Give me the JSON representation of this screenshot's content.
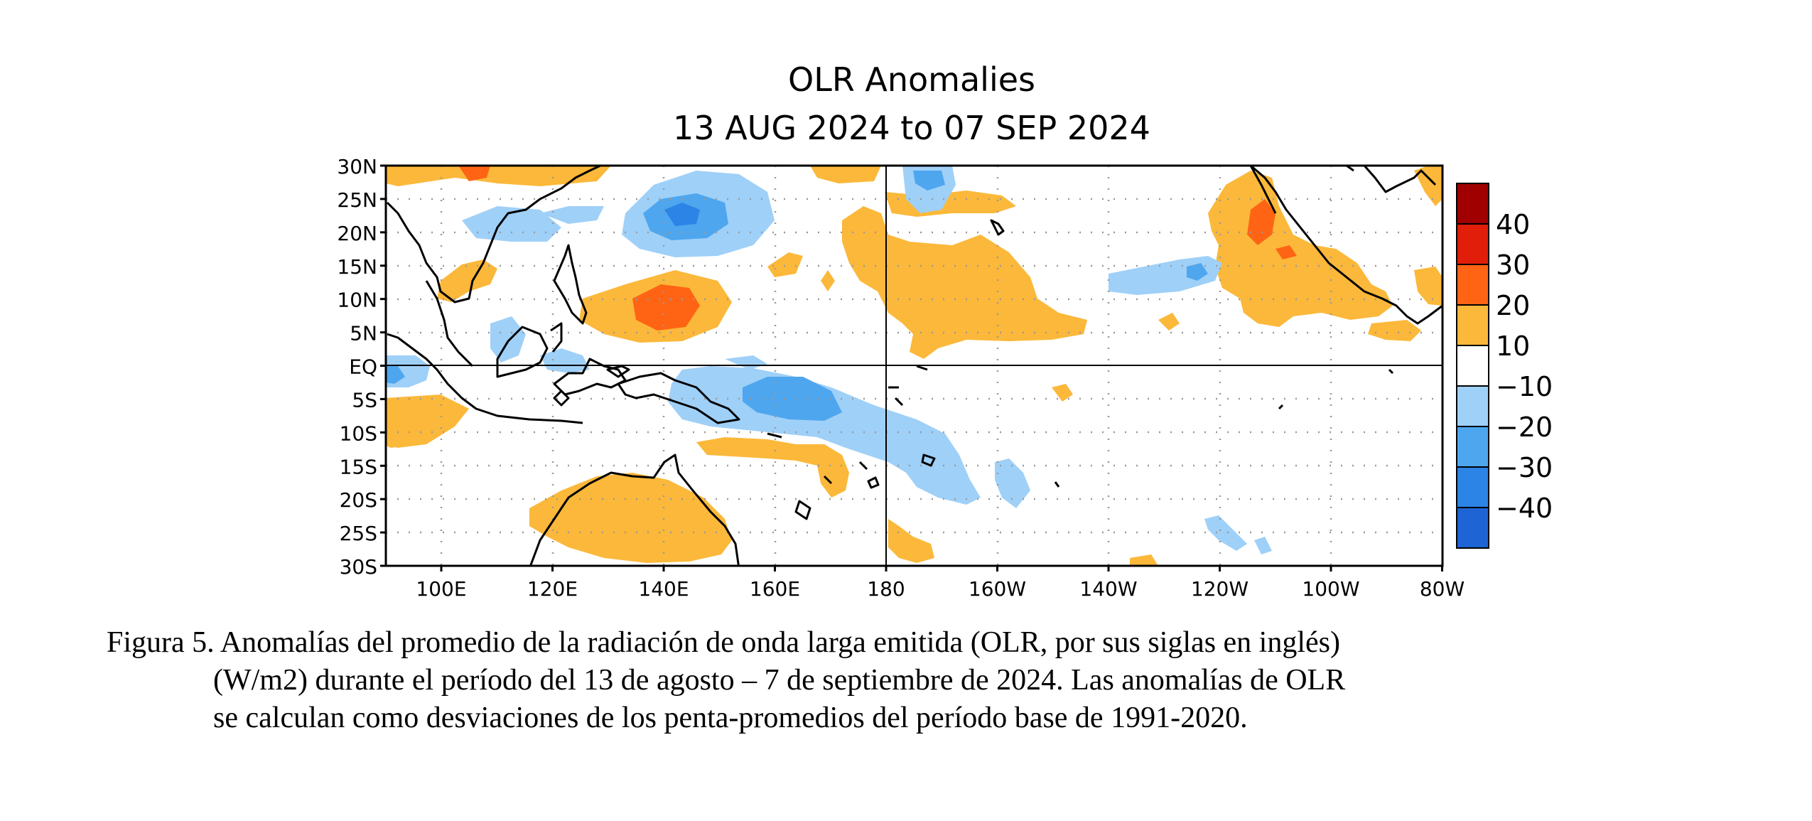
{
  "map": {
    "title": "OLR Anomalies",
    "subtitle": "13 AUG 2024 to 07 SEP 2024",
    "lat_labels": [
      "30N",
      "25N",
      "20N",
      "15N",
      "10N",
      "5N",
      "EQ",
      "5S",
      "10S",
      "15S",
      "20S",
      "25S",
      "30S"
    ],
    "lon_labels": [
      "100E",
      "120E",
      "140E",
      "160E",
      "180",
      "160W",
      "140W",
      "120W",
      "100W",
      "80W"
    ],
    "colorbar": {
      "labels": [
        "40",
        "30",
        "20",
        "10",
        "−10",
        "−20",
        "−30",
        "−40"
      ],
      "colors": [
        "#a00000",
        "#e01e0a",
        "#ff6414",
        "#fbb83a",
        "#ffffff",
        "#9fd0f8",
        "#4ea6ee",
        "#2c84e6",
        "#1e64d4"
      ]
    },
    "palette": {
      "pos_10_20": "#fbb83a",
      "pos_20_30": "#ff6414",
      "pos_30_40": "#e01e0a",
      "neg_10_20": "#9fd0f8",
      "neg_20_30": "#4ea6ee",
      "neg_30_40": "#2c84e6"
    }
  },
  "caption": {
    "line1": "Figura 5. Anomalías del promedio de la radiación de onda larga emitida (OLR, por sus siglas en inglés)",
    "line2": "(W/m2) durante el período del 13 de agosto – 7 de septiembre de 2024.  Las anomalías de OLR",
    "line3": "se calculan como desviaciones de los penta-promedios del período base de 1991-2020."
  }
}
